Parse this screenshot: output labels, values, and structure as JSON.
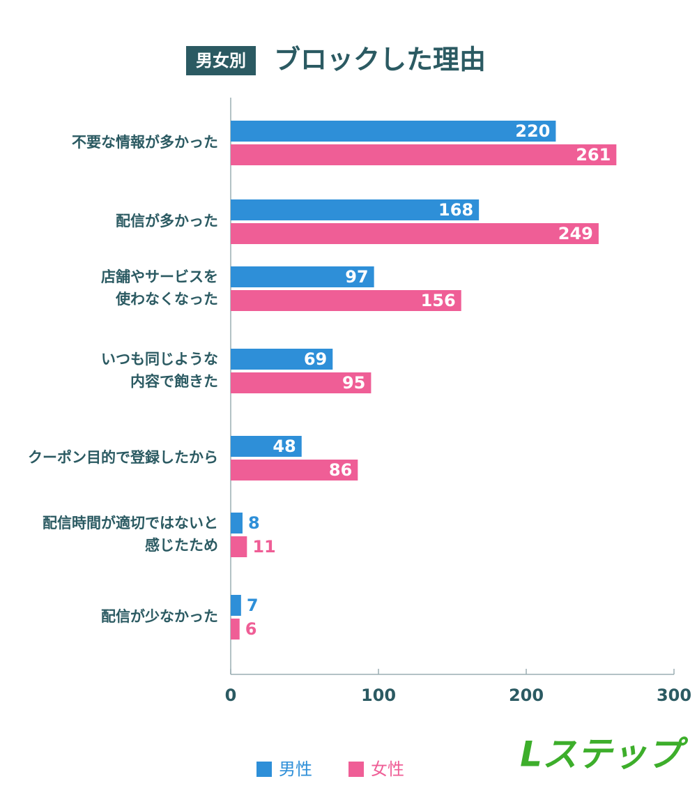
{
  "chart_data": {
    "type": "hbar",
    "badge": "男女別",
    "title": "ブロックした理由",
    "categories": [
      "不要な情報が多かった",
      "配信が多かった",
      "店舗やサービスを\n使わなくなった",
      "いつも同じような\n内容で飽きた",
      "クーポン目的で登録したから",
      "配信時間が適切ではないと\n感じたため",
      "配信が少なかった"
    ],
    "series": [
      {
        "name": "男性",
        "color": "#2e8fd8",
        "values": [
          220,
          168,
          97,
          69,
          48,
          8,
          7
        ]
      },
      {
        "name": "女性",
        "color": "#ef5e96",
        "values": [
          261,
          249,
          156,
          95,
          86,
          11,
          6
        ]
      }
    ],
    "xlim": [
      0,
      300
    ],
    "xticks": [
      0,
      100,
      200,
      300
    ],
    "logo": "Lステップ"
  }
}
